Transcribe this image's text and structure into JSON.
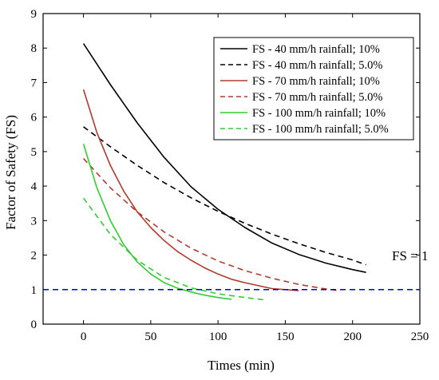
{
  "chart_data": {
    "type": "line",
    "title": "",
    "xlabel": "Times (min)",
    "ylabel": "Factor of Safety (FS)",
    "xlim": [
      -30,
      250
    ],
    "ylim": [
      0,
      9
    ],
    "xticks": [
      0,
      50,
      100,
      150,
      200,
      250
    ],
    "yticks": [
      0,
      1,
      2,
      3,
      4,
      5,
      6,
      7,
      8,
      9
    ],
    "grid": false,
    "legend_position": "top-right",
    "series": [
      {
        "name": "FS - 40 mm/h rainfall; 10%",
        "color": "#000000",
        "dash": "solid",
        "x": [
          0,
          20,
          40,
          60,
          80,
          100,
          120,
          140,
          160,
          180,
          200,
          210
        ],
        "y": [
          8.13,
          6.94,
          5.83,
          4.83,
          3.98,
          3.33,
          2.8,
          2.35,
          2.02,
          1.77,
          1.58,
          1.5
        ]
      },
      {
        "name": "FS - 40 mm/h rainfall; 5.0%",
        "color": "#000000",
        "dash": "dashed",
        "x": [
          0,
          20,
          40,
          60,
          80,
          100,
          120,
          140,
          160,
          180,
          200,
          210
        ],
        "y": [
          5.72,
          5.14,
          4.6,
          4.1,
          3.66,
          3.27,
          2.92,
          2.61,
          2.33,
          2.08,
          1.86,
          1.72
        ]
      },
      {
        "name": "FS - 70 mm/h rainfall; 10%",
        "color": "#b03a2e",
        "dash": "solid",
        "x": [
          0,
          10,
          20,
          30,
          40,
          50,
          60,
          70,
          80,
          90,
          100,
          110,
          120,
          140,
          160
        ],
        "y": [
          6.8,
          5.55,
          4.6,
          3.85,
          3.25,
          2.8,
          2.42,
          2.1,
          1.85,
          1.63,
          1.45,
          1.3,
          1.2,
          1.03,
          0.97
        ]
      },
      {
        "name": "FS - 70 mm/h rainfall; 5.0%",
        "color": "#b03a2e",
        "dash": "dashed",
        "x": [
          0,
          20,
          40,
          60,
          80,
          100,
          120,
          140,
          160,
          180,
          190
        ],
        "y": [
          4.8,
          3.95,
          3.25,
          2.67,
          2.2,
          1.83,
          1.55,
          1.33,
          1.15,
          1.02,
          0.97
        ]
      },
      {
        "name": "FS - 100 mm/h rainfall; 10%",
        "color": "#33cc33",
        "dash": "solid",
        "x": [
          0,
          10,
          20,
          30,
          40,
          50,
          60,
          70,
          80,
          90,
          100,
          110
        ],
        "y": [
          5.22,
          3.95,
          3.0,
          2.3,
          1.8,
          1.45,
          1.2,
          1.04,
          0.93,
          0.84,
          0.77,
          0.72
        ]
      },
      {
        "name": "FS - 100 mm/h rainfall; 5.0%",
        "color": "#33cc33",
        "dash": "dashed",
        "x": [
          0,
          20,
          40,
          60,
          80,
          100,
          120,
          135
        ],
        "y": [
          3.65,
          2.6,
          1.85,
          1.35,
          1.05,
          0.88,
          0.77,
          0.7
        ]
      }
    ],
    "reference_line": {
      "y": 1,
      "color": "#0000cc",
      "dash": "dashed",
      "label": "FS = 1"
    }
  }
}
